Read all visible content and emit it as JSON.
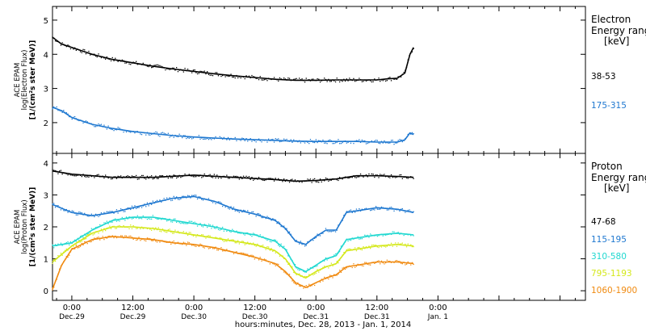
{
  "xaxis": {
    "caption": "hours:minutes, Dec. 28, 2013 - Jan. 1, 2014",
    "range_hours": [
      -3.8,
      101
    ],
    "ticks": [
      {
        "h": 0,
        "time": "0:00",
        "date": "Dec.29"
      },
      {
        "h": 12,
        "time": "12:00",
        "date": "Dec.29"
      },
      {
        "h": 24,
        "time": "0:00",
        "date": "Dec.30"
      },
      {
        "h": 36,
        "time": "12:00",
        "date": "Dec.30"
      },
      {
        "h": 48,
        "time": "0:00",
        "date": "Dec.31"
      },
      {
        "h": 60,
        "time": "12:00",
        "date": "Dec.31"
      },
      {
        "h": 72,
        "time": "0:00",
        "date": "Jan. 1"
      }
    ]
  },
  "chart_data": [
    {
      "type": "scatter",
      "panel": "electron",
      "ylabel_lines": [
        "ACE EPAM",
        "log(Electron Flux)",
        "[1/(cm²s ster MeV)]"
      ],
      "ylim": [
        1.1,
        5.4
      ],
      "yticks": [
        "2",
        "3",
        "4",
        "5"
      ],
      "legend_title": [
        "Electron",
        "Energy ranges",
        "[keV]"
      ],
      "series": [
        {
          "name": "38-53",
          "color": "#000000",
          "x": [
            -3.8,
            -2,
            0,
            4,
            8,
            12,
            16,
            20,
            24,
            28,
            32,
            36,
            40,
            44,
            48,
            52,
            56,
            60,
            62,
            64,
            65.5,
            66.5,
            67.2
          ],
          "y": [
            4.5,
            4.3,
            4.2,
            4.0,
            3.85,
            3.75,
            3.65,
            3.57,
            3.5,
            3.43,
            3.37,
            3.32,
            3.27,
            3.24,
            3.24,
            3.25,
            3.25,
            3.25,
            3.28,
            3.3,
            3.45,
            4.0,
            4.2
          ]
        },
        {
          "name": "175-315",
          "color": "#1f78d0",
          "x": [
            -3.8,
            -2,
            0,
            4,
            8,
            12,
            16,
            20,
            24,
            28,
            32,
            36,
            40,
            44,
            48,
            52,
            56,
            60,
            62,
            64,
            65.5,
            66.5,
            67.2
          ],
          "y": [
            2.45,
            2.35,
            2.15,
            1.95,
            1.83,
            1.74,
            1.68,
            1.62,
            1.58,
            1.55,
            1.52,
            1.5,
            1.48,
            1.46,
            1.45,
            1.45,
            1.45,
            1.43,
            1.43,
            1.43,
            1.5,
            1.7,
            1.65
          ]
        }
      ]
    },
    {
      "type": "scatter",
      "panel": "proton",
      "ylabel_lines": [
        "ACE EPAM",
        "log(Proton Flux)",
        "[1/(cm²s ster MeV)]"
      ],
      "ylim": [
        -0.3,
        4.3
      ],
      "yticks": [
        "0",
        "1",
        "2",
        "3",
        "4"
      ],
      "legend_title": [
        "Proton",
        "Energy ranges",
        "[keV]"
      ],
      "series": [
        {
          "name": "47-68",
          "color": "#000000",
          "x": [
            -3.8,
            0,
            8,
            16,
            24,
            32,
            40,
            44,
            48,
            52,
            56,
            60,
            64,
            67.2
          ],
          "y": [
            3.75,
            3.65,
            3.55,
            3.55,
            3.62,
            3.55,
            3.48,
            3.43,
            3.45,
            3.5,
            3.6,
            3.6,
            3.58,
            3.55
          ]
        },
        {
          "name": "115-195",
          "color": "#1f78d0",
          "x": [
            -3.8,
            0,
            4,
            8,
            12,
            16,
            20,
            24,
            28,
            32,
            36,
            40,
            42,
            44,
            46,
            48,
            50,
            52,
            54,
            56,
            60,
            64,
            67.2
          ],
          "y": [
            2.7,
            2.45,
            2.35,
            2.45,
            2.6,
            2.75,
            2.9,
            2.95,
            2.8,
            2.55,
            2.4,
            2.2,
            1.95,
            1.55,
            1.45,
            1.7,
            1.9,
            1.9,
            2.45,
            2.5,
            2.6,
            2.55,
            2.45
          ]
        },
        {
          "name": "310-580",
          "color": "#20d8d0",
          "x": [
            -3.8,
            0,
            4,
            8,
            12,
            16,
            20,
            24,
            28,
            32,
            36,
            40,
            42,
            44,
            46,
            48,
            50,
            52,
            54,
            56,
            60,
            64,
            67.2
          ],
          "y": [
            1.4,
            1.5,
            1.9,
            2.2,
            2.3,
            2.3,
            2.2,
            2.1,
            2.0,
            1.85,
            1.75,
            1.55,
            1.3,
            0.75,
            0.6,
            0.8,
            1.0,
            1.1,
            1.6,
            1.65,
            1.75,
            1.8,
            1.75
          ]
        },
        {
          "name": "795-1193",
          "color": "#d4e81a",
          "x": [
            -3.8,
            0,
            4,
            8,
            12,
            16,
            20,
            24,
            28,
            32,
            36,
            40,
            42,
            44,
            46,
            48,
            50,
            52,
            54,
            56,
            60,
            64,
            67.2
          ],
          "y": [
            0.9,
            1.4,
            1.8,
            2.0,
            2.0,
            1.95,
            1.85,
            1.75,
            1.65,
            1.55,
            1.45,
            1.25,
            1.0,
            0.55,
            0.4,
            0.6,
            0.75,
            0.85,
            1.25,
            1.3,
            1.4,
            1.45,
            1.4
          ]
        },
        {
          "name": "1060-1900",
          "color": "#f08a10",
          "x": [
            -3.8,
            -2,
            0,
            4,
            8,
            12,
            16,
            20,
            24,
            28,
            32,
            36,
            40,
            42,
            44,
            46,
            48,
            50,
            52,
            54,
            56,
            60,
            64,
            67.2
          ],
          "y": [
            0.05,
            0.8,
            1.3,
            1.6,
            1.7,
            1.65,
            1.6,
            1.5,
            1.45,
            1.35,
            1.2,
            1.05,
            0.85,
            0.6,
            0.25,
            0.1,
            0.25,
            0.4,
            0.5,
            0.75,
            0.8,
            0.9,
            0.9,
            0.85
          ]
        }
      ]
    }
  ]
}
